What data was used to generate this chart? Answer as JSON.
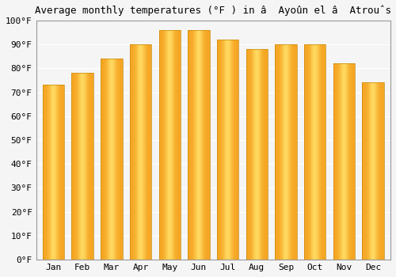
{
  "title": "Average monthly temperatures (°F ) in â  Ayoûn el â  Atroûs",
  "months": [
    "Jan",
    "Feb",
    "Mar",
    "Apr",
    "May",
    "Jun",
    "Jul",
    "Aug",
    "Sep",
    "Oct",
    "Nov",
    "Dec"
  ],
  "values": [
    73,
    78,
    84,
    90,
    96,
    96,
    92,
    88,
    90,
    90,
    82,
    74
  ],
  "bar_color_left": "#F5A623",
  "bar_color_mid": "#FFD060",
  "bar_color_right": "#F5A623",
  "bar_edge_color": "#C8890A",
  "background_color": "#f5f5f5",
  "plot_bg_color": "#f5f5f5",
  "ylim": [
    0,
    100
  ],
  "yticks": [
    0,
    10,
    20,
    30,
    40,
    50,
    60,
    70,
    80,
    90,
    100
  ],
  "ytick_labels": [
    "0°F",
    "10°F",
    "20°F",
    "30°F",
    "40°F",
    "50°F",
    "60°F",
    "70°F",
    "80°F",
    "90°F",
    "100°F"
  ],
  "title_fontsize": 9,
  "tick_fontsize": 8,
  "grid_color": "#ffffff",
  "spine_color": "#999999",
  "bar_width": 0.75,
  "figsize": [
    5.0,
    3.5
  ],
  "dpi": 100
}
